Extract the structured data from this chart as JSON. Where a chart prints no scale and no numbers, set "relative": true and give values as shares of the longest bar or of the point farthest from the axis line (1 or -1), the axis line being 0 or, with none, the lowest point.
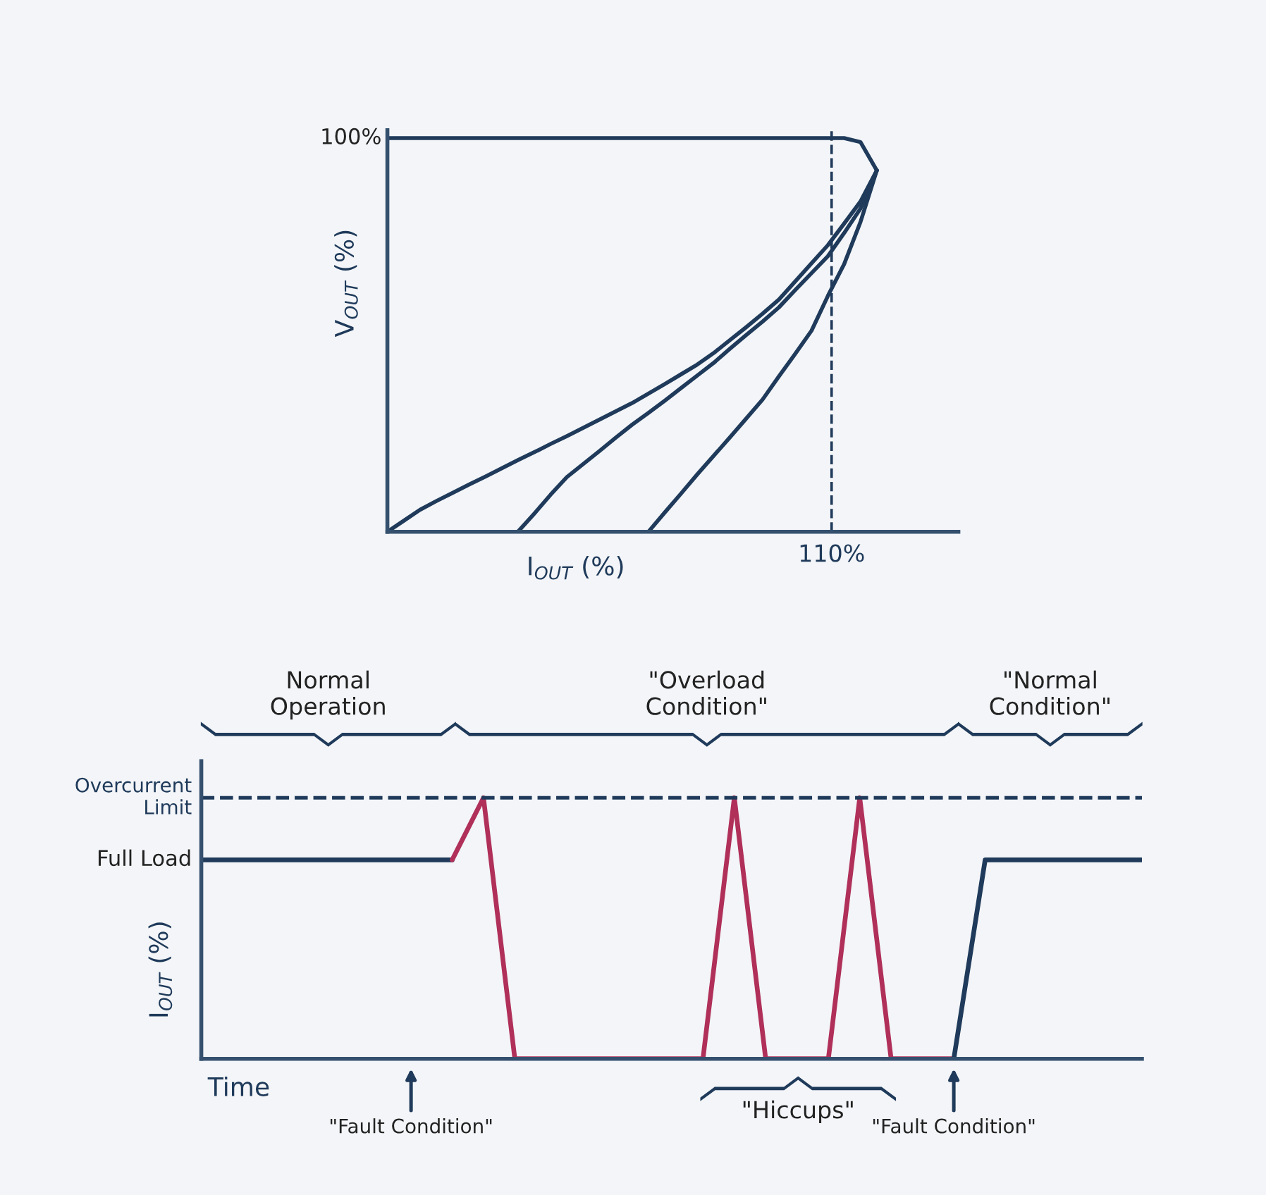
{
  "chart_data": [
    {
      "type": "line",
      "relative": true,
      "xlabel": "I$_{OUT}$ (%)",
      "ylabel": "V$_{OUT}$ (%)",
      "categories": [
        null,
        null,
        null,
        null,
        null,
        null,
        null,
        null,
        null,
        null,
        null,
        null,
        null,
        null,
        null,
        null,
        null,
        null,
        null,
        null,
        null,
        null,
        null,
        null,
        null,
        null,
        null,
        null,
        null,
        null,
        null,
        null,
        null,
        null,
        null,
        null
      ],
      "series": [
        {
          "color": "#1f3a5a",
          "values": [
            1,
            1,
            1,
            1,
            1,
            1,
            1,
            1,
            1,
            1,
            1,
            1,
            1,
            1,
            1,
            1,
            1,
            1,
            1,
            1,
            1,
            1,
            1,
            1,
            1,
            1,
            1,
            1,
            1,
            0.99,
            0.918,
            null,
            null,
            null,
            null,
            null
          ]
        },
        {
          "color": "#1f3a5a",
          "values": [
            0,
            0.028,
            0.056,
            0.078,
            0.099,
            0.12,
            0.14,
            0.161,
            0.182,
            0.202,
            0.223,
            0.243,
            0.264,
            0.285,
            0.306,
            0.327,
            0.351,
            0.375,
            0.4,
            0.425,
            0.454,
            0.487,
            0.52,
            0.554,
            0.59,
            0.636,
            0.682,
            0.728,
            0.783,
            0.839,
            0.918,
            null,
            null,
            null,
            null,
            null
          ]
        },
        {
          "color": "#1f3a5a",
          "values": [
            null,
            null,
            null,
            null,
            null,
            null,
            null,
            null,
            0,
            0.046,
            0.094,
            0.139,
            0.172,
            0.205,
            0.239,
            0.272,
            0.302,
            0.333,
            0.365,
            0.397,
            0.429,
            0.465,
            0.5,
            0.534,
            0.57,
            0.614,
            0.657,
            0.7,
            0.759,
            0.821,
            0.918,
            null,
            null,
            null,
            null,
            null
          ]
        },
        {
          "color": "#1f3a5a",
          "values": [
            null,
            null,
            null,
            null,
            null,
            null,
            null,
            null,
            null,
            null,
            null,
            null,
            null,
            null,
            null,
            null,
            0,
            0.049,
            0.097,
            0.146,
            0.193,
            0.24,
            0.288,
            0.336,
            0.395,
            0.452,
            0.511,
            0.599,
            0.68,
            0.787,
            0.918,
            null,
            null,
            null,
            null,
            null
          ]
        }
      ],
      "annotations": [
        "100%",
        "110%"
      ]
    },
    {
      "type": "line",
      "relative": true,
      "xlabel": "Time",
      "ylabel": "I$_{OUT}$ (%)",
      "categories": [
        null,
        null,
        null,
        null,
        null,
        null,
        null,
        null,
        null,
        null,
        null,
        null,
        null,
        null,
        null,
        null,
        null,
        null,
        null,
        null,
        null,
        null,
        null,
        null,
        null,
        null,
        null,
        null,
        null,
        null,
        null
      ],
      "series": [
        {
          "color": "#1f3a5a",
          "values": [
            0.762,
            0.762,
            0.762,
            0.762,
            0.762,
            0.762,
            0.762,
            0.762,
            0.762,
            null,
            null,
            null,
            null,
            null,
            null,
            null,
            null,
            null,
            null,
            null,
            null,
            null,
            null,
            null,
            null,
            null,
            null,
            null,
            null,
            null,
            null
          ]
        },
        {
          "color": "#b0305a",
          "values": [
            null,
            null,
            null,
            null,
            null,
            null,
            null,
            null,
            0.762,
            1,
            0,
            0,
            0,
            0,
            0,
            0,
            0,
            1,
            0,
            0,
            0,
            1,
            0,
            0,
            0,
            null,
            null,
            null,
            null,
            null,
            null
          ]
        },
        {
          "color": "#1f3a5a",
          "values": [
            null,
            null,
            null,
            null,
            null,
            null,
            null,
            null,
            null,
            null,
            null,
            null,
            null,
            null,
            null,
            null,
            null,
            null,
            null,
            null,
            null,
            null,
            null,
            null,
            0,
            0.762,
            0.762,
            0.762,
            0.762,
            0.762,
            0.762
          ]
        }
      ],
      "ref_lines": [
        {
          "axis": "y",
          "value": 1,
          "label": "Overcurrent\nLimit",
          "line_style": "dashed",
          "color": "#1f3a5a"
        }
      ],
      "annotations": [
        "Full Load",
        "Normal\nOperation",
        "\"Overload\nCondition\"",
        "\"Normal\nCondition\"",
        "\"Hiccups\"",
        "\"Fault Condition\"",
        "\"Fault Condition\""
      ]
    }
  ]
}
